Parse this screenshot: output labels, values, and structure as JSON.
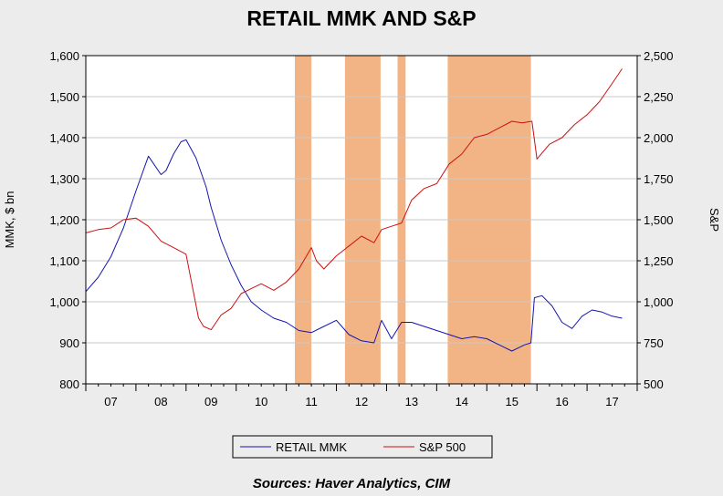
{
  "chart_data": {
    "type": "line",
    "title": "RETAIL MMK AND S&P",
    "ylabel_left": "MMK, $ bn",
    "ylabel_right": "S&P",
    "source": "Sources:  Haver Analytics, CIM",
    "x_tick_labels": [
      "07",
      "08",
      "09",
      "10",
      "11",
      "12",
      "13",
      "14",
      "15",
      "16",
      "17"
    ],
    "x_range": [
      2006.5,
      2017.5
    ],
    "y_left_range": [
      800,
      1600
    ],
    "y_left_ticks": [
      "800",
      "900",
      "1,000",
      "1,100",
      "1,200",
      "1,300",
      "1,400",
      "1,500",
      "1,600"
    ],
    "y_right_range": [
      500,
      2500
    ],
    "y_right_ticks": [
      "500",
      "750",
      "1,000",
      "1,250",
      "1,500",
      "1,750",
      "2,000",
      "2,250",
      "2,500"
    ],
    "grid": true,
    "legend_position": "bottom",
    "shaded_periods": [
      [
        2010.67,
        2011.0
      ],
      [
        2011.67,
        2012.38
      ],
      [
        2012.72,
        2012.88
      ],
      [
        2013.72,
        2015.38
      ]
    ],
    "series": [
      {
        "name": "RETAIL MMK",
        "axis": "left",
        "color": "#1515b0",
        "x": [
          2006.5,
          2006.75,
          2007.0,
          2007.25,
          2007.5,
          2007.75,
          2008.0,
          2008.1,
          2008.25,
          2008.4,
          2008.5,
          2008.7,
          2008.9,
          2009.0,
          2009.2,
          2009.4,
          2009.6,
          2009.8,
          2010.0,
          2010.25,
          2010.5,
          2010.75,
          2011.0,
          2011.25,
          2011.5,
          2011.75,
          2012.0,
          2012.25,
          2012.4,
          2012.6,
          2012.8,
          2013.0,
          2013.25,
          2013.5,
          2013.75,
          2014.0,
          2014.25,
          2014.5,
          2014.75,
          2015.0,
          2015.25,
          2015.38,
          2015.45,
          2015.6,
          2015.8,
          2016.0,
          2016.2,
          2016.4,
          2016.6,
          2016.8,
          2017.0,
          2017.2
        ],
        "values": [
          1025,
          1060,
          1110,
          1180,
          1270,
          1355,
          1310,
          1320,
          1360,
          1390,
          1395,
          1350,
          1280,
          1230,
          1150,
          1090,
          1040,
          1000,
          980,
          960,
          950,
          930,
          925,
          940,
          955,
          920,
          905,
          900,
          955,
          910,
          950,
          950,
          940,
          930,
          920,
          910,
          915,
          910,
          895,
          880,
          895,
          900,
          1010,
          1015,
          990,
          950,
          935,
          965,
          980,
          975,
          965,
          960
        ]
      },
      {
        "name": "S&P 500",
        "axis": "right",
        "color": "#cc1111",
        "x": [
          2006.5,
          2006.75,
          2007.0,
          2007.25,
          2007.5,
          2007.75,
          2008.0,
          2008.25,
          2008.5,
          2008.75,
          2008.85,
          2009.0,
          2009.2,
          2009.4,
          2009.6,
          2009.8,
          2010.0,
          2010.25,
          2010.5,
          2010.75,
          2011.0,
          2011.1,
          2011.25,
          2011.5,
          2011.75,
          2012.0,
          2012.25,
          2012.4,
          2012.6,
          2012.8,
          2013.0,
          2013.25,
          2013.5,
          2013.75,
          2014.0,
          2014.25,
          2014.5,
          2014.75,
          2015.0,
          2015.2,
          2015.4,
          2015.5,
          2015.75,
          2016.0,
          2016.25,
          2016.5,
          2016.75,
          2017.0,
          2017.2
        ],
        "values": [
          1420,
          1440,
          1450,
          1500,
          1510,
          1460,
          1370,
          1330,
          1290,
          900,
          850,
          830,
          920,
          960,
          1050,
          1080,
          1110,
          1070,
          1120,
          1200,
          1330,
          1250,
          1200,
          1280,
          1340,
          1400,
          1360,
          1440,
          1460,
          1480,
          1620,
          1690,
          1720,
          1840,
          1900,
          2000,
          2020,
          2060,
          2100,
          2090,
          2100,
          1870,
          1960,
          2000,
          2080,
          2140,
          2220,
          2330,
          2420
        ]
      }
    ]
  }
}
